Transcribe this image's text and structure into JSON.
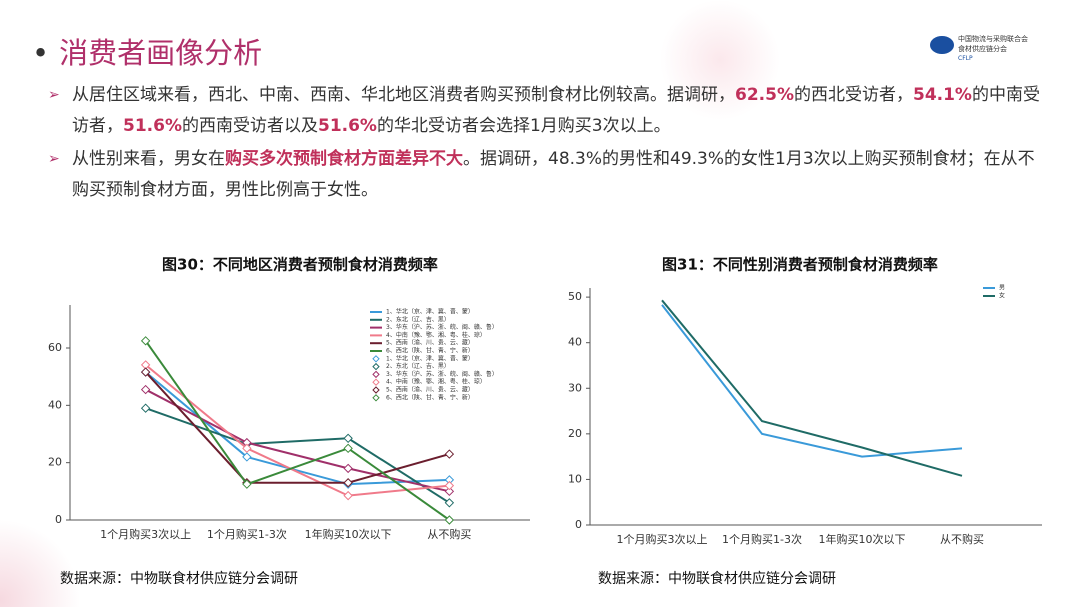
{
  "header": {
    "title": "消费者画像分析",
    "logo": {
      "line1": "中国物流与采购联合会",
      "line2": "食材供应链分会",
      "abbr": "CFLP"
    }
  },
  "bullets": [
    [
      {
        "text": "从居住区域来看，西北、中南、西南、华北地区消费者购买预制食材比例较高。据调研，",
        "em": false
      },
      {
        "text": "62.5%",
        "em": true
      },
      {
        "text": "的西北受访者，",
        "em": false
      },
      {
        "text": "54.1%",
        "em": true
      },
      {
        "text": "的中南受访者，",
        "em": false
      },
      {
        "text": "51.6%",
        "em": true
      },
      {
        "text": "的西南受访者以及",
        "em": false
      },
      {
        "text": "51.6%",
        "em": true
      },
      {
        "text": "的华北受访者会选择1月购买3次以上。",
        "em": false
      }
    ],
    [
      {
        "text": "从性别来看，男女在",
        "em": false
      },
      {
        "text": "购买多次预制食材方面差异不大",
        "em": true
      },
      {
        "text": "。据调研，48.3%的男性和49.3%的女性1月3次以上购买预制食材；在从不购买预制食材方面，男性比例高于女性。",
        "em": false
      }
    ]
  ],
  "chart_data": [
    {
      "type": "line",
      "title": "图30：不同地区消费者预制食材消费频率",
      "source": "数据来源：中物联食材供应链分会调研",
      "categories": [
        "1个月购买3次以上",
        "1个月购买1-3次",
        "1年购买10次以下",
        "从不购买"
      ],
      "ylim": [
        0,
        75
      ],
      "yticks": [
        0,
        20,
        40,
        60
      ],
      "markers": "diamond",
      "legend": "upper right",
      "series": [
        {
          "name": "1、华北（京、津、冀、晋、蒙）",
          "color": "#3a9ad9",
          "values": [
            51.6,
            22,
            12.5,
            14
          ]
        },
        {
          "name": "2、东北（辽、吉、黑）",
          "color": "#1f6b66",
          "values": [
            39,
            26.5,
            28.5,
            6
          ]
        },
        {
          "name": "3、华东（沪、苏、浙、皖、闽、赣、鲁）",
          "color": "#a0306a",
          "values": [
            45.5,
            27,
            18,
            10
          ]
        },
        {
          "name": "4、中南（豫、鄂、湘、粤、桂、琼）",
          "color": "#f07a8a",
          "values": [
            54.1,
            25,
            8.5,
            12
          ]
        },
        {
          "name": "5、西南（渝、川、贵、云、藏）",
          "color": "#6b1e2e",
          "values": [
            51.6,
            13,
            13,
            23
          ]
        },
        {
          "name": "6、西北（陕、甘、青、宁、新）",
          "color": "#3a8a3a",
          "values": [
            62.5,
            12.5,
            25,
            0
          ]
        }
      ]
    },
    {
      "type": "line",
      "title": "图31：不同性别消费者预制食材消费频率",
      "source": "数据来源：中物联食材供应链分会调研",
      "categories": [
        "1个月购买3次以上",
        "1个月购买1-3次",
        "1年购买10次以下",
        "从不购买"
      ],
      "ylim": [
        0,
        52
      ],
      "yticks": [
        0,
        10,
        20,
        30,
        40,
        50
      ],
      "markers": "none",
      "legend": "upper right",
      "series": [
        {
          "name": "男",
          "color": "#3a9ad9",
          "values": [
            48.3,
            20,
            15,
            16.8
          ]
        },
        {
          "name": "女",
          "color": "#1f6b66",
          "values": [
            49.3,
            22.8,
            17,
            10.8
          ]
        }
      ]
    }
  ]
}
